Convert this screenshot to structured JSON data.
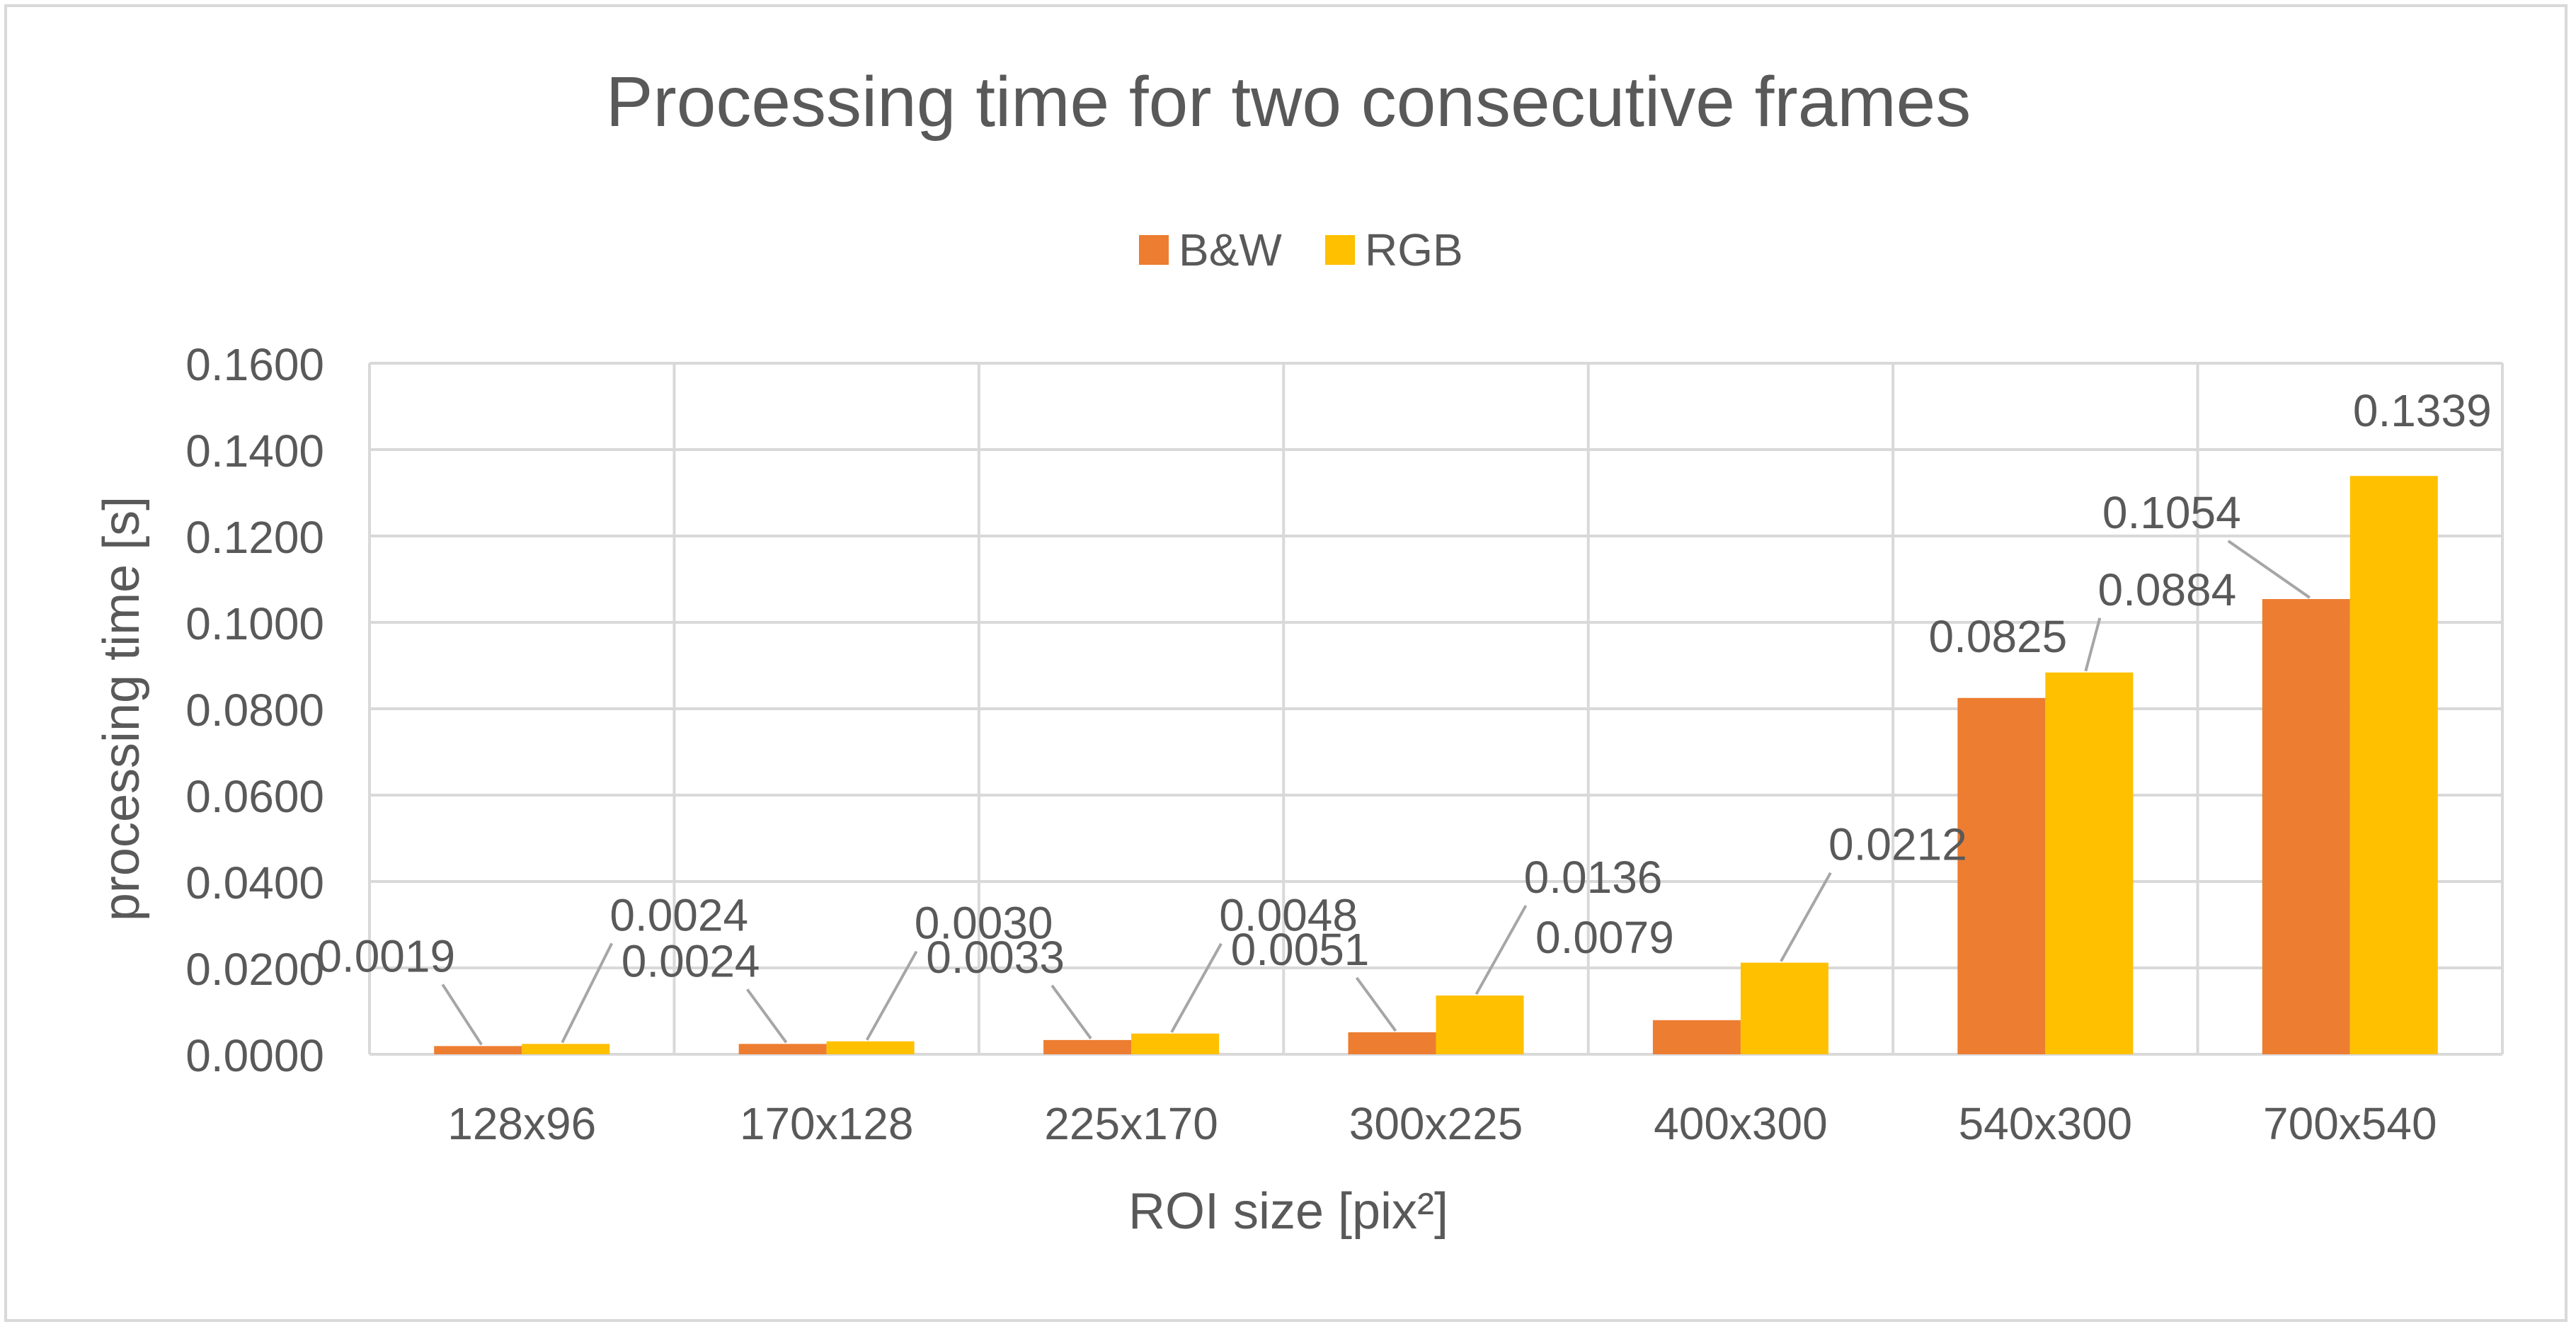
{
  "chart_data": {
    "type": "bar",
    "title": "Processing time for two consecutive frames",
    "xlabel": "ROI size [pix²]",
    "ylabel": "processing time [s]",
    "categories": [
      "128x96",
      "170x128",
      "225x170",
      "300x225",
      "400x300",
      "540x300",
      "700x540"
    ],
    "series": [
      {
        "name": "B&W",
        "color": "#ed7d31",
        "values": [
          0.0019,
          0.0024,
          0.0033,
          0.0051,
          0.0079,
          0.0825,
          0.1054
        ],
        "labels": [
          "0.0019",
          "0.0024",
          "0.0033",
          "0.0051",
          "0.0079",
          "0.0825",
          "0.1054"
        ]
      },
      {
        "name": "RGB",
        "color": "#ffc000",
        "values": [
          0.0024,
          0.003,
          0.0048,
          0.0136,
          0.0212,
          0.0884,
          0.1339
        ],
        "labels": [
          "0.0024",
          "0.0030",
          "0.0048",
          "0.0136",
          "0.0212",
          "0.0884",
          "0.1339"
        ]
      }
    ],
    "ylim": [
      0,
      0.16
    ],
    "yticks": [
      "0.0000",
      "0.0200",
      "0.0400",
      "0.0600",
      "0.0800",
      "0.1000",
      "0.1200",
      "0.1400",
      "0.1600"
    ],
    "grid": true,
    "legend_position": "top-center"
  }
}
